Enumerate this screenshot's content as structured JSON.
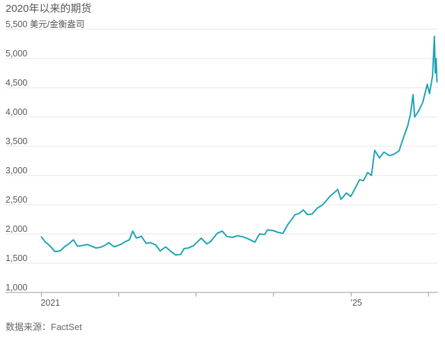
{
  "header": {
    "title": "2020年以来的期货"
  },
  "footer": {
    "source": "数据来源：FactSet"
  },
  "colors": {
    "line": "#1ba3b4",
    "grid": "#e6e6e6",
    "text": "#555555"
  },
  "chart_data": {
    "type": "line",
    "title": "2020年以来的期货",
    "ylabel": "美元/金衡盎司",
    "ylim": [
      1000,
      5500
    ],
    "yticks": [
      1000,
      1500,
      2000,
      2500,
      3000,
      3500,
      4000,
      4500,
      5000,
      5500
    ],
    "ytick_labels": [
      "1,000",
      "1,500",
      "2,000",
      "2,500",
      "3,000",
      "3,500",
      "4,000",
      "4,500",
      "5,000",
      "5,500 美元/金衡盎司"
    ],
    "xlim": [
      "2020-12-01",
      "2026-02-15"
    ],
    "xticks": [
      "2021-01-01",
      "2022-01-01",
      "2023-01-01",
      "2024-01-01",
      "2025-01-01",
      "2026-01-01"
    ],
    "xtick_labels": [
      "2021",
      "",
      "",
      "",
      "’25",
      ""
    ],
    "grid": true,
    "series": [
      {
        "x": [
          "2021-01-01",
          "2021-01-20",
          "2021-02-10",
          "2021-03-05",
          "2021-03-31",
          "2021-04-20",
          "2021-05-10",
          "2021-06-01",
          "2021-06-20",
          "2021-07-10",
          "2021-08-05",
          "2021-08-25",
          "2021-09-15",
          "2021-10-05",
          "2021-10-25",
          "2021-11-15",
          "2021-12-10",
          "2022-01-10",
          "2022-02-01",
          "2022-02-20",
          "2022-03-08",
          "2022-03-25",
          "2022-04-18",
          "2022-05-10",
          "2022-06-01",
          "2022-06-25",
          "2022-07-15",
          "2022-08-10",
          "2022-09-01",
          "2022-09-26",
          "2022-10-20",
          "2022-11-05",
          "2022-11-25",
          "2022-12-20",
          "2023-01-25",
          "2023-02-20",
          "2023-03-10",
          "2023-04-10",
          "2023-05-04",
          "2023-05-25",
          "2023-06-20",
          "2023-07-15",
          "2023-08-10",
          "2023-09-01",
          "2023-10-05",
          "2023-10-27",
          "2023-11-20",
          "2023-12-04",
          "2023-12-28",
          "2024-01-20",
          "2024-02-14",
          "2024-03-08",
          "2024-04-12",
          "2024-05-01",
          "2024-05-20",
          "2024-06-10",
          "2024-07-01",
          "2024-07-25",
          "2024-08-20",
          "2024-09-25",
          "2024-10-30",
          "2024-11-14",
          "2024-12-10",
          "2024-12-30",
          "2025-01-20",
          "2025-02-10",
          "2025-02-28",
          "2025-03-20",
          "2025-04-07",
          "2025-04-22",
          "2025-05-15",
          "2025-06-05",
          "2025-06-30",
          "2025-07-20",
          "2025-08-15",
          "2025-09-05",
          "2025-09-25",
          "2025-10-08",
          "2025-10-20",
          "2025-10-28",
          "2025-11-15",
          "2025-12-05",
          "2025-12-26",
          "2026-01-06",
          "2026-01-20",
          "2026-01-29",
          "2026-02-02",
          "2026-02-06",
          "2026-02-10"
        ],
        "y": [
          1950,
          1860,
          1800,
          1700,
          1710,
          1780,
          1830,
          1900,
          1790,
          1800,
          1820,
          1790,
          1760,
          1770,
          1800,
          1850,
          1780,
          1820,
          1870,
          1900,
          2050,
          1930,
          1960,
          1840,
          1850,
          1810,
          1710,
          1780,
          1710,
          1640,
          1650,
          1750,
          1760,
          1800,
          1930,
          1830,
          1870,
          2010,
          2050,
          1960,
          1940,
          1970,
          1950,
          1920,
          1860,
          2000,
          1990,
          2070,
          2060,
          2030,
          2010,
          2160,
          2330,
          2350,
          2410,
          2330,
          2340,
          2440,
          2500,
          2650,
          2760,
          2590,
          2700,
          2640,
          2780,
          2930,
          2910,
          3050,
          3000,
          3430,
          3300,
          3400,
          3340,
          3360,
          3420,
          3650,
          3850,
          4050,
          4380,
          4000,
          4100,
          4250,
          4560,
          4400,
          4700,
          5380,
          4750,
          5000,
          4600
        ]
      }
    ]
  }
}
